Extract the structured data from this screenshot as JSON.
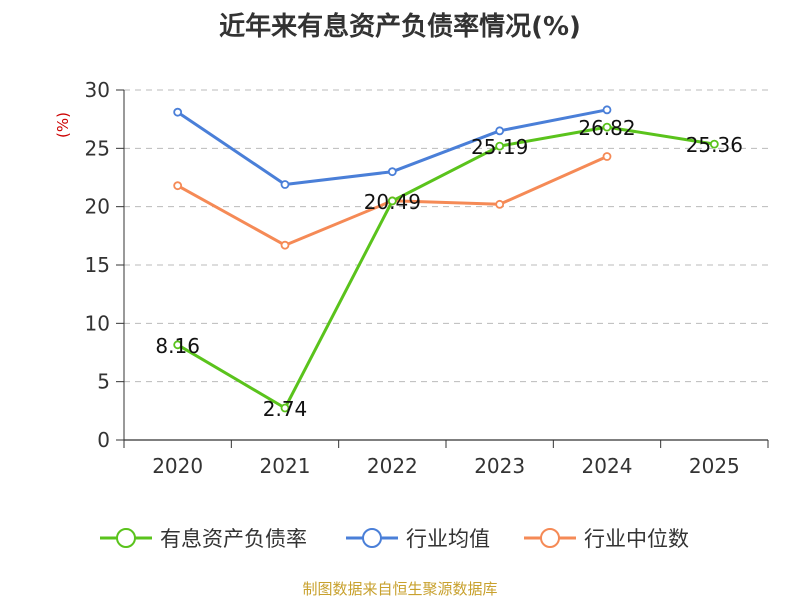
{
  "title": "近年来有息资产负债率情况(%)",
  "source": "制图数据来自恒生聚源数据库",
  "colors": {
    "debt_ratio": "#5ac31c",
    "industry_avg": "#4a7fd8",
    "industry_median": "#f58a56",
    "unit_label": "#cc0000",
    "grid": "#bbbbbb",
    "axis": "#333333"
  },
  "chart_data": {
    "type": "line",
    "title": "近年来有息资产负债率情况(%)",
    "ylabel": "(%)",
    "xlabel": "",
    "ylim": [
      0,
      30
    ],
    "yticks": [
      "0",
      "5",
      "10",
      "15",
      "20",
      "25",
      "30"
    ],
    "categories": [
      "2020",
      "2021",
      "2022",
      "2023",
      "2024",
      "2025"
    ],
    "grid": "horizontal dashed",
    "legend_position": "bottom",
    "series": [
      {
        "name": "有息资产负债率",
        "color": "#5ac31c",
        "values": [
          8.16,
          2.74,
          20.49,
          25.19,
          26.82,
          25.36
        ],
        "labels": [
          "8.16",
          "2.74",
          "20.49",
          "25.19",
          "26.82",
          "25.36"
        ]
      },
      {
        "name": "行业均值",
        "color": "#4a7fd8",
        "values": [
          28.1,
          21.9,
          23.0,
          26.5,
          28.3,
          null
        ]
      },
      {
        "name": "行业中位数",
        "color": "#f58a56",
        "values": [
          21.8,
          16.7,
          20.5,
          20.2,
          24.3,
          null
        ]
      }
    ]
  }
}
